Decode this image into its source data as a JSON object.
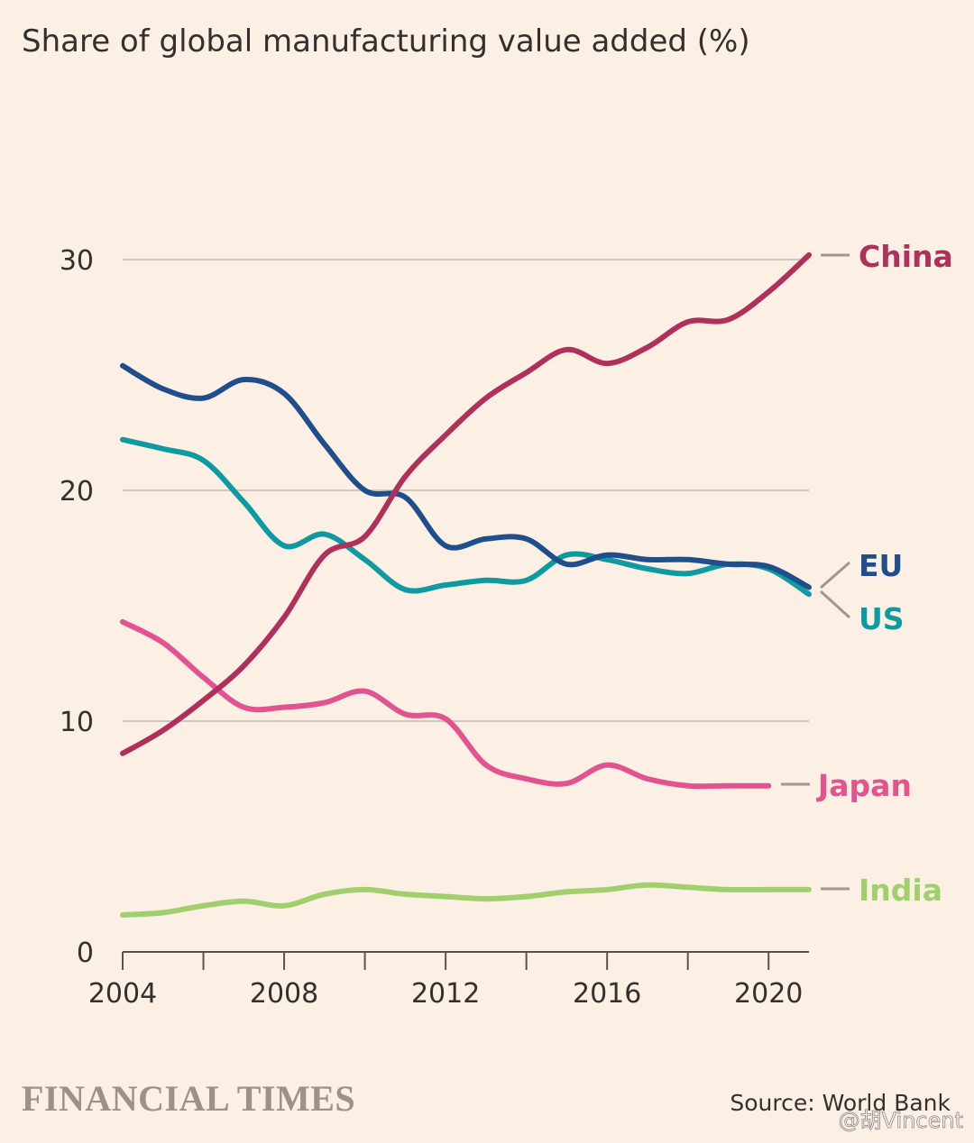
{
  "footer": {
    "brand": "FINANCIAL TIMES",
    "source": "Source: World Bank",
    "watermark": "@胡Vincent"
  },
  "chart_data": {
    "type": "line",
    "title": "Share of global manufacturing value added (%)",
    "xlabel": "",
    "ylabel": "",
    "xlim": [
      2004,
      2021
    ],
    "ylim": [
      0,
      30
    ],
    "x_ticks": [
      2004,
      2008,
      2012,
      2016,
      2020
    ],
    "y_ticks": [
      0,
      10,
      20,
      30
    ],
    "grid": "horizontal",
    "legend": "labels at line ends (right)",
    "series": [
      {
        "name": "China",
        "color": "#b0305c",
        "x": [
          2004,
          2005,
          2006,
          2007,
          2008,
          2009,
          2010,
          2011,
          2012,
          2013,
          2014,
          2015,
          2016,
          2017,
          2018,
          2019,
          2020,
          2021
        ],
        "values": [
          8.6,
          9.6,
          10.9,
          12.4,
          14.5,
          17.2,
          18.0,
          20.6,
          22.4,
          24.0,
          25.1,
          26.1,
          25.5,
          26.2,
          27.3,
          27.4,
          28.6,
          30.2
        ]
      },
      {
        "name": "EU",
        "color": "#1e4f8c",
        "x": [
          2004,
          2005,
          2006,
          2007,
          2008,
          2009,
          2010,
          2011,
          2012,
          2013,
          2014,
          2015,
          2016,
          2017,
          2018,
          2019,
          2020,
          2021
        ],
        "values": [
          25.4,
          24.4,
          24.0,
          24.8,
          24.2,
          22.0,
          20.0,
          19.7,
          17.6,
          17.9,
          17.9,
          16.8,
          17.2,
          17.0,
          17.0,
          16.8,
          16.7,
          15.8
        ]
      },
      {
        "name": "US",
        "color": "#0d9aa1",
        "x": [
          2004,
          2005,
          2006,
          2007,
          2008,
          2009,
          2010,
          2011,
          2012,
          2013,
          2014,
          2015,
          2016,
          2017,
          2018,
          2019,
          2020,
          2021
        ],
        "values": [
          22.2,
          21.8,
          21.3,
          19.5,
          17.6,
          18.1,
          17.0,
          15.7,
          15.9,
          16.1,
          16.1,
          17.2,
          17.0,
          16.6,
          16.4,
          16.8,
          16.6,
          15.5
        ]
      },
      {
        "name": "Japan",
        "color": "#e2548f",
        "x": [
          2004,
          2005,
          2006,
          2007,
          2008,
          2009,
          2010,
          2011,
          2012,
          2013,
          2014,
          2015,
          2016,
          2017,
          2018,
          2019,
          2020
        ],
        "values": [
          14.3,
          13.4,
          11.9,
          10.6,
          10.6,
          10.8,
          11.3,
          10.3,
          10.1,
          8.1,
          7.5,
          7.3,
          8.1,
          7.5,
          7.2,
          7.2,
          7.2
        ]
      },
      {
        "name": "India",
        "color": "#a2cf6e",
        "x": [
          2004,
          2005,
          2006,
          2007,
          2008,
          2009,
          2010,
          2011,
          2012,
          2013,
          2014,
          2015,
          2016,
          2017,
          2018,
          2019,
          2020,
          2021
        ],
        "values": [
          1.6,
          1.7,
          2.0,
          2.2,
          2.0,
          2.5,
          2.7,
          2.5,
          2.4,
          2.3,
          2.4,
          2.6,
          2.7,
          2.9,
          2.8,
          2.7,
          2.7,
          2.7
        ]
      }
    ]
  }
}
